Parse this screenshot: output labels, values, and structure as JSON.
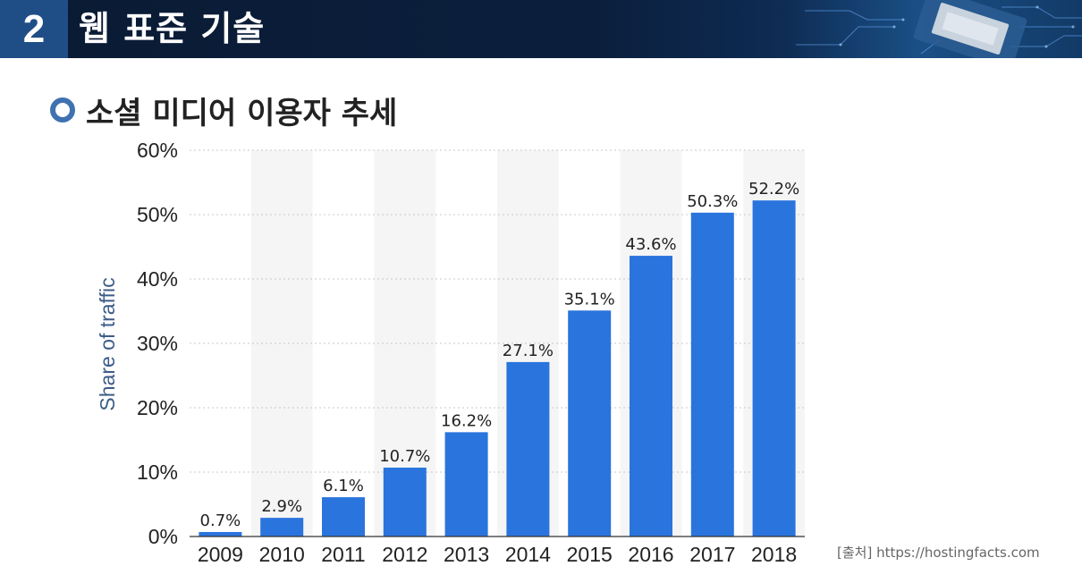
{
  "header": {
    "number": "2",
    "title": "웹 표준 기술"
  },
  "subtitle": "소셜 미디어 이용자 추세",
  "source": "[출처] https://hostingfacts.com",
  "colors": {
    "bar": "#2a74dd",
    "header_bg": "#0b1f3d",
    "number_bg": "#1f4e86",
    "axis_label": "#3d5c87"
  },
  "chart_data": {
    "type": "bar",
    "categories": [
      "2009",
      "2010",
      "2011",
      "2012",
      "2013",
      "2014",
      "2015",
      "2016",
      "2017",
      "2018"
    ],
    "values": [
      0.7,
      2.9,
      6.1,
      10.7,
      16.2,
      27.1,
      35.1,
      43.6,
      50.3,
      52.2
    ],
    "data_labels": [
      "0.7%",
      "2.9%",
      "6.1%",
      "10.7%",
      "16.2%",
      "27.1%",
      "35.1%",
      "43.6%",
      "50.3%",
      "52.2%"
    ],
    "yticks": [
      0,
      10,
      20,
      30,
      40,
      50,
      60
    ],
    "ytick_labels": [
      "0%",
      "10%",
      "20%",
      "30%",
      "40%",
      "50%",
      "60%"
    ],
    "ylabel": "Share of traffic",
    "ylim": [
      0,
      60
    ],
    "grid": true
  }
}
